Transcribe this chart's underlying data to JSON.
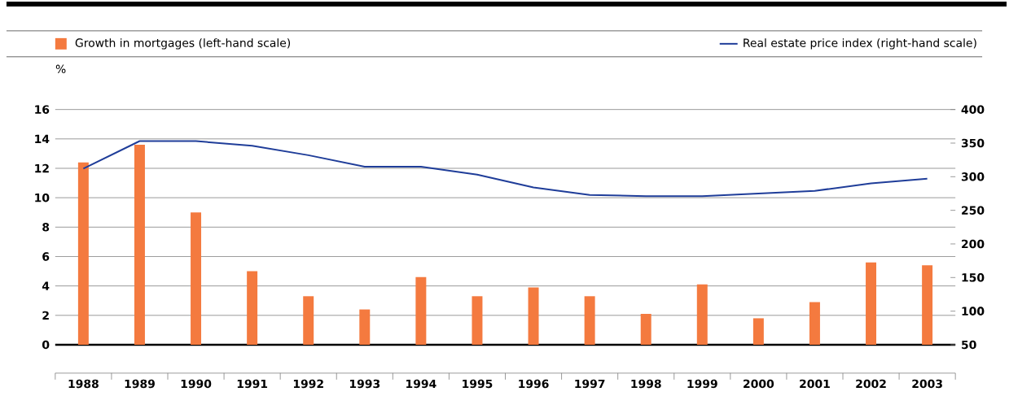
{
  "chart_data": {
    "type": "bar",
    "ylabel": "%",
    "legend": "top",
    "grid": "y",
    "categories": [
      "1988",
      "1989",
      "1990",
      "1991",
      "1992",
      "1993",
      "1994",
      "1995",
      "1996",
      "1997",
      "1998",
      "1999",
      "2000",
      "2001",
      "2002",
      "2003"
    ],
    "series": [
      {
        "name": "Growth in mortgages (left-hand scale)",
        "color": "#f47a3f",
        "values": [
          12.4,
          13.6,
          9.0,
          5.0,
          3.3,
          2.4,
          4.6,
          3.3,
          3.9,
          3.3,
          2.1,
          4.1,
          1.8,
          2.9,
          5.6,
          5.4
        ]
      },
      {
        "name": "Real estate price index (right-hand scale)",
        "type": "line",
        "axis": "y2",
        "color": "#1f3d99",
        "values": [
          312,
          353,
          353,
          346,
          332,
          315,
          315,
          303,
          284,
          273,
          271,
          271,
          275,
          279,
          290,
          297
        ]
      }
    ],
    "ylim": [
      0,
      16
    ],
    "yticks": [
      0,
      2,
      4,
      6,
      8,
      10,
      12,
      14,
      16
    ],
    "y2lim": [
      50,
      400
    ],
    "y2ticks": [
      50,
      100,
      150,
      200,
      250,
      300,
      350,
      400
    ]
  }
}
